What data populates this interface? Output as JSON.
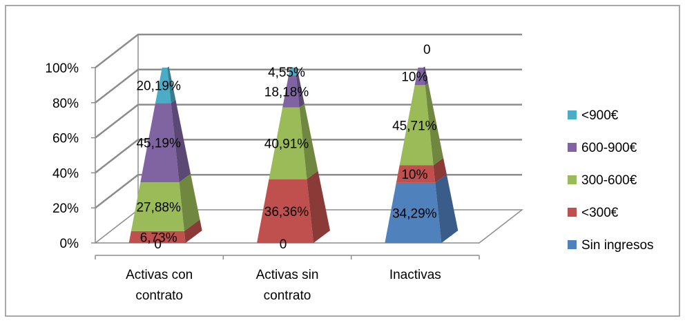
{
  "chart_data": {
    "type": "bar",
    "subtype": "100% stacked pyramid (3D)",
    "title": "",
    "xlabel": "",
    "ylabel": "",
    "ylim": [
      0,
      100
    ],
    "y_ticks": [
      "0%",
      "20%",
      "40%",
      "60%",
      "80%",
      "100%"
    ],
    "grid": true,
    "legend_position": "right",
    "categories": [
      [
        "Activas con",
        "contrato"
      ],
      [
        "Activas sin",
        "contrato"
      ],
      [
        "Inactivas"
      ]
    ],
    "series": [
      {
        "name": "Sin ingresos",
        "color": "#4f81bd",
        "values": [
          0,
          0,
          34.29
        ],
        "labels": [
          "",
          "",
          "34,29%"
        ]
      },
      {
        "name": "<300€",
        "color": "#c0504d",
        "values": [
          6.73,
          36.36,
          10
        ],
        "labels": [
          "6,73%",
          "36,36%",
          "10%"
        ]
      },
      {
        "name": "300-600€",
        "color": "#9bbb59",
        "values": [
          27.88,
          40.91,
          45.71
        ],
        "labels": [
          "27,88%",
          "40,91%",
          "45,71%"
        ]
      },
      {
        "name": "600-900€",
        "color": "#8064a2",
        "values": [
          45.19,
          18.18,
          10
        ],
        "labels": [
          "45,19%",
          "18,18%",
          "10%"
        ]
      },
      {
        "name": "<900€",
        "color": "#4bacc6",
        "values": [
          20.19,
          4.55,
          0
        ],
        "labels": [
          "20,19%",
          "4,55%",
          "0"
        ]
      }
    ],
    "extra_labels": [
      {
        "category": 0,
        "text": "0"
      },
      {
        "category": 1,
        "text": "0"
      }
    ]
  }
}
